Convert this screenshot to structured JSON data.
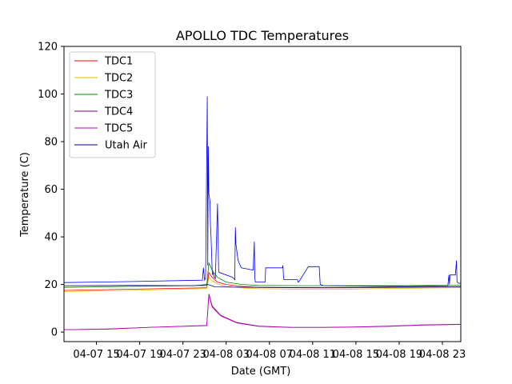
{
  "chart_data": {
    "type": "line",
    "title": "APOLLO TDC Temperatures",
    "xlabel": "Date (GMT)",
    "ylabel": "Temperature (C)",
    "x_units": "hours since 04-07 12:00 GMT",
    "xlim": [
      0,
      36.7
    ],
    "ylim": [
      -4,
      120
    ],
    "y_ticks": [
      0,
      20,
      40,
      60,
      80,
      100,
      120
    ],
    "x_ticks": [
      {
        "value": 3,
        "label": "04-07 15"
      },
      {
        "value": 7,
        "label": "04-07 19"
      },
      {
        "value": 11,
        "label": "04-07 23"
      },
      {
        "value": 15,
        "label": "04-08 03"
      },
      {
        "value": 19,
        "label": "04-08 07"
      },
      {
        "value": 23,
        "label": "04-08 11"
      },
      {
        "value": 27,
        "label": "04-08 15"
      },
      {
        "value": 31,
        "label": "04-08 19"
      },
      {
        "value": 35,
        "label": "04-08 23"
      }
    ],
    "legend_position": "top-left",
    "series": [
      {
        "name": "TDC1",
        "color": "#ff0000",
        "x": [
          0,
          6,
          13.2,
          13.4,
          13.7,
          14.2,
          15,
          16.5,
          18,
          22,
          26,
          30,
          34,
          36.7
        ],
        "y": [
          17.5,
          18,
          18.6,
          25,
          23,
          21,
          20,
          19.2,
          18.8,
          18.6,
          18.6,
          18.8,
          19,
          19
        ]
      },
      {
        "name": "TDC2",
        "color": "#e6b800",
        "x": [
          0,
          6,
          13.2,
          13.4,
          13.7,
          14.2,
          15,
          16.5,
          18,
          22,
          26,
          30,
          34,
          36.7
        ],
        "y": [
          17,
          17.5,
          18.3,
          23,
          21.5,
          20.2,
          19.2,
          18.5,
          18.2,
          18,
          18,
          18.3,
          18.5,
          18.6
        ]
      },
      {
        "name": "TDC3",
        "color": "#008000",
        "x": [
          0,
          6,
          13.2,
          13.4,
          13.7,
          14.2,
          15,
          16.5,
          18,
          22,
          26,
          30,
          34,
          36.7
        ],
        "y": [
          18.8,
          19.2,
          19.6,
          29,
          26,
          23,
          21,
          20,
          19.6,
          19.5,
          19.5,
          19.5,
          19.6,
          19.6
        ]
      },
      {
        "name": "TDC4",
        "color": "#800080",
        "x": [
          0,
          4,
          8,
          13.2,
          13.4,
          13.7,
          14.5,
          16,
          18,
          21,
          24,
          27,
          30,
          33,
          36.7
        ],
        "y": [
          1,
          1.3,
          2,
          2.8,
          16,
          11,
          7,
          4,
          2.5,
          2,
          2,
          2.2,
          2.5,
          3,
          3.3
        ]
      },
      {
        "name": "TDC5",
        "color": "#c000c0",
        "x": [
          0,
          4,
          8,
          13.2,
          13.4,
          13.7,
          14.5,
          16,
          18,
          21,
          24,
          27,
          30,
          33,
          36.7
        ],
        "y": [
          1,
          1.2,
          2,
          2.7,
          15.5,
          10.5,
          6.8,
          3.8,
          2.4,
          1.9,
          1.9,
          2.1,
          2.4,
          2.9,
          3.2
        ]
      },
      {
        "name": "Utah Air",
        "color": "#000080",
        "x": [
          0,
          6,
          12,
          13.3,
          14,
          18,
          24,
          30,
          36.7
        ],
        "y": [
          19.5,
          19.6,
          19.5,
          20,
          19,
          18.8,
          18.6,
          18.8,
          19
        ]
      },
      {
        "name": "",
        "color": "#0000ff",
        "x": [
          0,
          6,
          12.8,
          12.9,
          13.0,
          13.1,
          13.25,
          13.3,
          13.35,
          13.4,
          13.5,
          13.55,
          13.6,
          13.7,
          13.75,
          13.8,
          13.9,
          14.0,
          14.2,
          14.3,
          14.35,
          14.4,
          15.6,
          15.8,
          15.85,
          15.9,
          16.1,
          16.3,
          16.4,
          17.5,
          17.6,
          17.65,
          17.7,
          18.6,
          18.65,
          18.7,
          20.2,
          20.25,
          20.3,
          20.35,
          20.5,
          21.6,
          21.65,
          21.7,
          22.6,
          22.65,
          22.7,
          23.6,
          23.7,
          24.0,
          28,
          32,
          35.5,
          35.6,
          35.65,
          35.7,
          36.2,
          36.3,
          36.35,
          36.5,
          36.7
        ],
        "y": [
          20.8,
          21.2,
          21.8,
          27,
          21.8,
          22.5,
          99,
          28,
          78,
          58,
          55,
          45,
          40,
          26,
          24,
          25,
          23,
          22.5,
          54,
          26,
          25,
          25,
          23,
          22,
          44,
          37,
          30,
          28,
          27,
          26,
          38,
          23,
          21,
          21,
          27,
          27,
          27,
          28,
          23,
          22,
          22,
          22,
          21,
          21,
          27.5,
          27.5,
          27.5,
          27.5,
          20,
          19.5,
          19.3,
          19.2,
          19.5,
          24,
          20,
          24,
          24,
          30,
          21,
          20.5,
          20.5
        ]
      }
    ]
  }
}
